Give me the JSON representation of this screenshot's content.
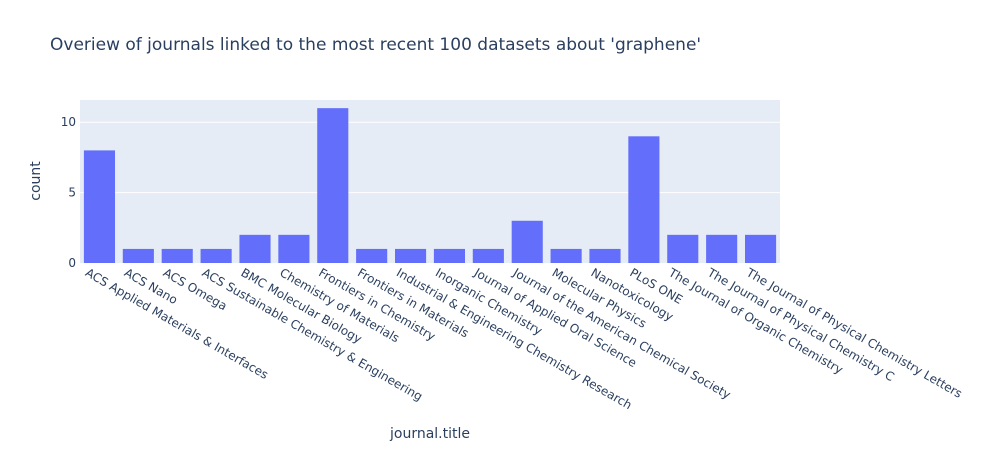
{
  "chart_data": {
    "type": "bar",
    "title": "Overiew of journals linked to the most recent 100 datasets about 'graphene'",
    "xlabel": "journal.title",
    "ylabel": "count",
    "categories": [
      "ACS Applied Materials & Interfaces",
      "ACS Nano",
      "ACS Omega",
      "ACS Sustainable Chemistry & Engineering",
      "BMC Molecular Biology",
      "Chemistry of Materials",
      "Frontiers in Chemistry",
      "Frontiers in Materials",
      "Industrial & Engineering Chemistry Research",
      "Inorganic Chemistry",
      "Journal of Applied Oral Science",
      "Journal of the American Chemical Society",
      "Molecular Physics",
      "Nanotoxicology",
      "PLoS ONE",
      "The Journal of Organic Chemistry",
      "The Journal of Physical Chemistry C",
      "The Journal of Physical Chemistry Letters"
    ],
    "values": [
      8,
      1,
      1,
      1,
      2,
      2,
      11,
      1,
      1,
      1,
      1,
      3,
      1,
      1,
      9,
      2,
      2,
      2
    ],
    "ylim": [
      0,
      11.58
    ],
    "yticks": [
      0,
      5,
      10
    ],
    "grid": true,
    "colors": {
      "bar": "#636efa",
      "plot_bg": "#e5ecf6",
      "grid": "#ffffff",
      "text": "#2a3f5f"
    }
  }
}
